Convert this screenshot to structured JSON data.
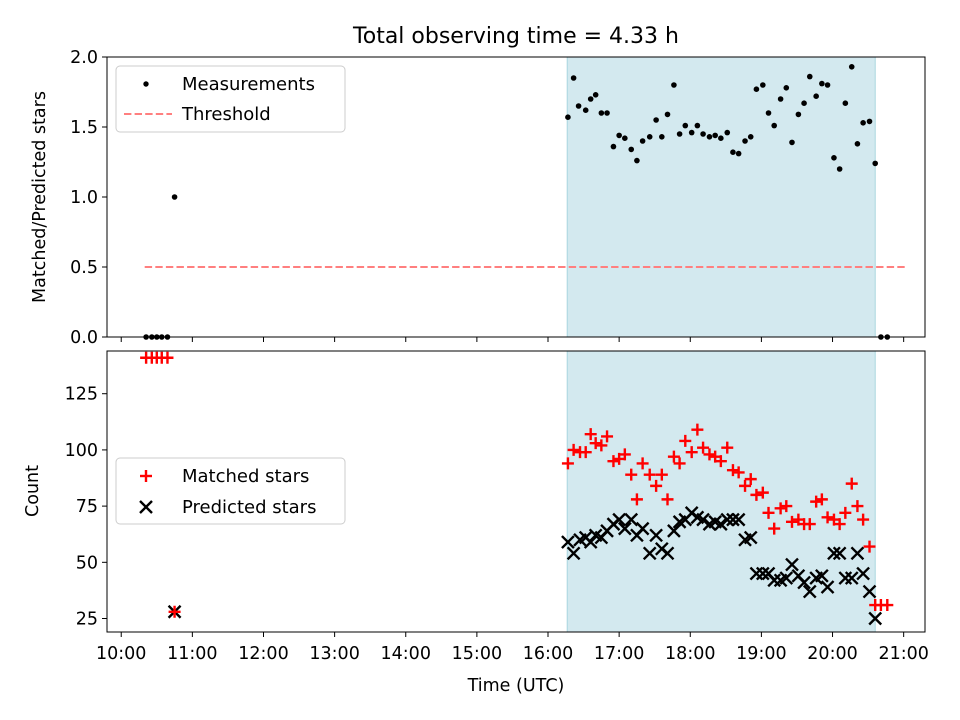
{
  "chart_data": [
    {
      "type": "scatter",
      "title": "Total observing time = 4.33 h",
      "xlabel": "",
      "ylabel": "Matched/Predicted stars",
      "ylim": [
        0,
        2.0
      ],
      "yticks": [
        0.0,
        0.5,
        1.0,
        1.5,
        2.0
      ],
      "ytick_labels": [
        "0.0",
        "0.5",
        "1.0",
        "1.5",
        "2.0"
      ],
      "x_units": "hours (UTC)",
      "xlim": [
        9.8,
        21.3
      ],
      "legend_placement": "top-left",
      "shaded_interval": [
        16.27,
        20.6
      ],
      "series": [
        {
          "name": "Measurements",
          "marker": "dot",
          "color": "#000000",
          "x": [
            10.35,
            10.43,
            10.5,
            10.57,
            10.65,
            10.75,
            16.28,
            16.36,
            16.43,
            16.53,
            16.6,
            16.67,
            16.75,
            16.83,
            16.92,
            17.0,
            17.08,
            17.17,
            17.25,
            17.33,
            17.43,
            17.52,
            17.6,
            17.68,
            17.77,
            17.85,
            17.93,
            18.02,
            18.1,
            18.18,
            18.27,
            18.35,
            18.43,
            18.52,
            18.6,
            18.68,
            18.77,
            18.85,
            18.93,
            19.02,
            19.1,
            19.18,
            19.27,
            19.35,
            19.43,
            19.52,
            19.6,
            19.68,
            19.77,
            19.85,
            19.93,
            20.02,
            20.1,
            20.18,
            20.27,
            20.35,
            20.43,
            20.52,
            20.6,
            20.68,
            20.77
          ],
          "y": [
            0.0,
            0.0,
            0.0,
            0.0,
            0.0,
            1.0,
            1.57,
            1.85,
            1.65,
            1.62,
            1.7,
            1.73,
            1.6,
            1.6,
            1.36,
            1.44,
            1.42,
            1.34,
            1.26,
            1.4,
            1.43,
            1.55,
            1.43,
            1.59,
            1.8,
            1.45,
            1.51,
            1.46,
            1.51,
            1.45,
            1.43,
            1.44,
            1.42,
            1.46,
            1.32,
            1.31,
            1.4,
            1.43,
            1.77,
            1.8,
            1.6,
            1.51,
            1.7,
            1.78,
            1.39,
            1.59,
            1.67,
            1.86,
            1.72,
            1.81,
            1.8,
            1.28,
            1.2,
            1.67,
            1.93,
            1.38,
            1.53,
            1.54,
            1.24,
            0.0,
            0.0
          ]
        },
        {
          "name": "Threshold",
          "style": "dashed",
          "color": "#ff7f7f",
          "x": [
            10.33,
            21.05
          ],
          "y": [
            0.5,
            0.5
          ]
        }
      ]
    },
    {
      "type": "scatter",
      "title": "",
      "xlabel": "Time (UTC)",
      "ylabel": "Count",
      "ylim": [
        19,
        144
      ],
      "yticks": [
        25,
        50,
        75,
        100,
        125
      ],
      "ytick_labels": [
        "25",
        "50",
        "75",
        "100",
        "125"
      ],
      "x_units": "hours (UTC)",
      "xlim": [
        9.8,
        21.3
      ],
      "xticks": [
        10,
        11,
        12,
        13,
        14,
        15,
        16,
        17,
        18,
        19,
        20,
        21
      ],
      "xtick_labels": [
        "10:00",
        "11:00",
        "12:00",
        "13:00",
        "14:00",
        "15:00",
        "16:00",
        "17:00",
        "18:00",
        "19:00",
        "20:00",
        "21:00"
      ],
      "legend_placement": "center-left",
      "shaded_interval": [
        16.27,
        20.6
      ],
      "series": [
        {
          "name": "Matched stars",
          "marker": "plus",
          "color": "#ff0000",
          "x": [
            10.35,
            10.43,
            10.5,
            10.57,
            10.65,
            10.75,
            16.28,
            16.36,
            16.45,
            16.53,
            16.6,
            16.67,
            16.75,
            16.83,
            16.92,
            17.0,
            17.08,
            17.17,
            17.25,
            17.33,
            17.43,
            17.52,
            17.6,
            17.68,
            17.77,
            17.85,
            17.93,
            18.02,
            18.1,
            18.18,
            18.27,
            18.35,
            18.43,
            18.52,
            18.6,
            18.68,
            18.77,
            18.85,
            18.93,
            19.02,
            19.1,
            19.18,
            19.27,
            19.35,
            19.43,
            19.52,
            19.6,
            19.68,
            19.77,
            19.85,
            19.93,
            20.02,
            20.1,
            20.18,
            20.27,
            20.35,
            20.43,
            20.52,
            20.6,
            20.68,
            20.77
          ],
          "y": [
            141,
            141,
            141,
            141,
            141,
            28,
            94,
            100,
            99,
            99,
            107,
            103,
            102,
            106,
            95,
            96,
            98,
            89,
            78,
            94,
            89,
            84,
            89,
            78,
            97,
            94,
            104,
            99,
            109,
            101,
            98,
            97,
            95,
            101,
            91,
            90,
            84,
            87,
            80,
            81,
            72,
            65,
            74,
            75,
            68,
            69,
            67,
            67,
            77,
            78,
            70,
            69,
            67,
            72,
            85,
            75,
            69,
            57,
            31,
            31,
            31
          ]
        },
        {
          "name": "Predicted stars",
          "marker": "x",
          "color": "#000000",
          "x": [
            10.75,
            16.28,
            16.36,
            16.45,
            16.53,
            16.6,
            16.67,
            16.75,
            16.83,
            16.92,
            17.0,
            17.08,
            17.17,
            17.25,
            17.33,
            17.43,
            17.52,
            17.6,
            17.68,
            17.77,
            17.85,
            17.93,
            18.02,
            18.1,
            18.18,
            18.27,
            18.35,
            18.43,
            18.52,
            18.6,
            18.68,
            18.77,
            18.85,
            18.93,
            19.02,
            19.1,
            19.18,
            19.27,
            19.35,
            19.43,
            19.52,
            19.6,
            19.68,
            19.77,
            19.85,
            19.93,
            20.02,
            20.1,
            20.18,
            20.27,
            20.35,
            20.43,
            20.52,
            20.6
          ],
          "y": [
            28,
            59,
            54,
            60,
            61,
            59,
            62,
            61,
            64,
            67,
            69,
            65,
            69,
            62,
            65,
            54,
            62,
            56,
            54,
            64,
            68,
            69,
            72,
            70,
            69,
            67,
            68,
            67,
            69,
            69,
            69,
            60,
            61,
            45,
            45,
            45,
            42,
            42,
            43,
            49,
            44,
            41,
            37,
            43,
            44,
            39,
            54,
            54,
            43,
            43,
            54,
            45,
            37,
            25
          ]
        }
      ]
    }
  ]
}
